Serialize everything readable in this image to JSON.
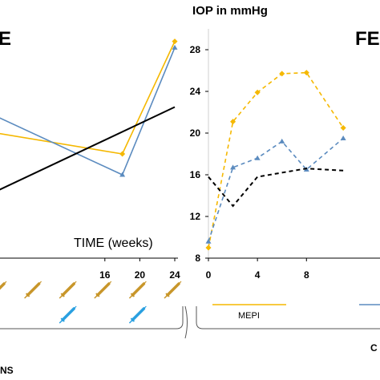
{
  "title": "IOP  in mmHg",
  "chart_data": [
    {
      "type": "line",
      "panel_label": "E",
      "xlabel": "TIME (weeks)",
      "x_ticks": [
        16,
        20,
        24
      ],
      "xlim": [
        4,
        24
      ],
      "ylim": [
        8,
        30
      ],
      "series": [
        {
          "color": "#f5b800",
          "style": "solid",
          "marker": "diamond",
          "x": [
            0,
            18,
            24
          ],
          "y": [
            20.5,
            18.0,
            28.8
          ]
        },
        {
          "color": "#5b8bbf",
          "style": "solid",
          "marker": "triangle",
          "x": [
            0,
            18,
            24
          ],
          "y": [
            23.0,
            16.0,
            28.2
          ]
        },
        {
          "color": "#000000",
          "style": "solid",
          "marker": "none",
          "x": [
            0,
            24
          ],
          "y": [
            13.0,
            22.5
          ]
        }
      ]
    },
    {
      "type": "line",
      "panel_label": "FE",
      "x_ticks": [
        0,
        4,
        8
      ],
      "y_ticks": [
        8,
        12,
        16,
        20,
        24,
        28
      ],
      "xlim": [
        0,
        14
      ],
      "ylim": [
        8,
        30
      ],
      "series": [
        {
          "color": "#f5b800",
          "style": "dashed",
          "marker": "diamond",
          "x": [
            0,
            2,
            4,
            6,
            8,
            11
          ],
          "y": [
            9.0,
            21.1,
            23.9,
            25.7,
            25.8,
            20.5
          ]
        },
        {
          "color": "#5b8bbf",
          "style": "dashed",
          "marker": "triangle",
          "x": [
            0,
            2,
            4,
            6,
            8,
            11
          ],
          "y": [
            9.6,
            16.7,
            17.6,
            19.2,
            16.5,
            19.5
          ]
        },
        {
          "color": "#000000",
          "style": "dashed",
          "marker": "none",
          "x": [
            0,
            2,
            4,
            8,
            11
          ],
          "y": [
            15.8,
            13.0,
            15.8,
            16.6,
            16.4
          ]
        }
      ]
    }
  ],
  "legend": {
    "mepi_label": "MEPI",
    "mepi_color": "#f5b800",
    "other_color": "#5b8bbf"
  },
  "cut_text": {
    "left": "NS",
    "right": "C"
  },
  "icons": {
    "gold_syringe_count": 6,
    "blue_syringe_count": 2,
    "gold_syringe": "syringe-icon",
    "blue_syringe": "syringe-icon"
  }
}
